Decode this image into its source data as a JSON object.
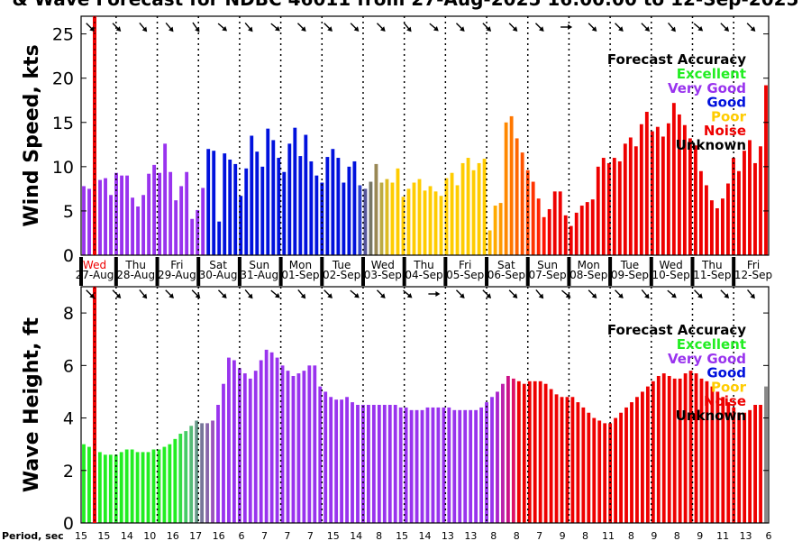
{
  "title": "& Wave Forecast for NDBC 46011 from 27-Aug-2025 16:00:00 to 12-Sep-2025",
  "legend": {
    "title": "Forecast Accuracy",
    "entries": [
      {
        "label": "Excellent",
        "color": "#22ee22"
      },
      {
        "label": "Very Good",
        "color": "#9933ee"
      },
      {
        "label": "Good",
        "color": "#0011dd"
      },
      {
        "label": "Poor",
        "color": "#ffcc00"
      },
      {
        "label": "Noise",
        "color": "#ee0000"
      },
      {
        "label": "Unknown",
        "color": "#000000"
      }
    ]
  },
  "period_label": "Period, sec",
  "periods": [
    "15",
    "15",
    "14",
    "10",
    "16",
    "17",
    "16",
    "6",
    "7",
    "7",
    "7",
    "15",
    "14",
    "8",
    "15",
    "14",
    "13",
    "13",
    "8",
    "8",
    "7",
    "9",
    "8",
    "11",
    "8",
    "9",
    "8",
    "9",
    "11",
    "13",
    "6"
  ],
  "days": [
    {
      "dow": "Wed",
      "date": "27-Aug"
    },
    {
      "dow": "Thu",
      "date": "28-Aug"
    },
    {
      "dow": "Fri",
      "date": "29-Aug"
    },
    {
      "dow": "Sat",
      "date": "30-Aug"
    },
    {
      "dow": "Sun",
      "date": "31-Aug"
    },
    {
      "dow": "Mon",
      "date": "01-Sep"
    },
    {
      "dow": "Tue",
      "date": "02-Sep"
    },
    {
      "dow": "Wed",
      "date": "03-Sep"
    },
    {
      "dow": "Thu",
      "date": "04-Sep"
    },
    {
      "dow": "Fri",
      "date": "05-Sep"
    },
    {
      "dow": "Sat",
      "date": "06-Sep"
    },
    {
      "dow": "Sun",
      "date": "07-Sep"
    },
    {
      "dow": "Mon",
      "date": "08-Sep"
    },
    {
      "dow": "Tue",
      "date": "09-Sep"
    },
    {
      "dow": "Wed",
      "date": "10-Sep"
    },
    {
      "dow": "Thu",
      "date": "11-Sep"
    },
    {
      "dow": "Fri",
      "date": "12-Sep"
    }
  ],
  "chart_data": [
    {
      "type": "bar",
      "ylabel": "Wind Speed, kts",
      "ylim": [
        0,
        27
      ],
      "yticks": [
        0,
        5,
        10,
        15,
        20,
        25
      ],
      "values": [
        7.8,
        7.5,
        9,
        8.5,
        8.7,
        6.8,
        9.3,
        9,
        9,
        6.5,
        5.5,
        6.8,
        9.2,
        10.2,
        9.3,
        12.6,
        9.4,
        6.2,
        7.8,
        9.4,
        4.1,
        5.1,
        7.6,
        12,
        11.8,
        3.8,
        11.5,
        10.8,
        10.3,
        6.7,
        9.8,
        13.5,
        11.7,
        10,
        14.3,
        13,
        11,
        9.4,
        12.6,
        14.4,
        11.2,
        13.6,
        10.6,
        9,
        8.2,
        11.1,
        12,
        11,
        8.2,
        10,
        10.6,
        7.9,
        7.5,
        8.3,
        10.3,
        8.2,
        8.6,
        8.2,
        9.8,
        6.6,
        7.5,
        8.2,
        8.6,
        7.3,
        7.8,
        7.2,
        6.7,
        8.7,
        9.3,
        7.9,
        10.4,
        11,
        9.6,
        10.4,
        10.9,
        2.8,
        5.6,
        5.9,
        15,
        15.7,
        13.2,
        11.6,
        9.6,
        8.3,
        6.4,
        4.3,
        5.2,
        7.2,
        7.2,
        4.5,
        3.3,
        4.8,
        5.6,
        6,
        6.3,
        10,
        11,
        10.4,
        11,
        10.6,
        12.6,
        13.3,
        12.3,
        14.8,
        16.2,
        14,
        14.5,
        13.4,
        14.9,
        17.2,
        15.9,
        14.7,
        13.2,
        12.4,
        9.5,
        7.9,
        6.2,
        5.3,
        6.4,
        8.1,
        11,
        9.5,
        11.8,
        13,
        10.4,
        12.3,
        19.2
      ],
      "colors": [
        "#9933ee",
        "#9933ee",
        "#9933ee",
        "#9933ee",
        "#9933ee",
        "#9933ee",
        "#9933ee",
        "#9933ee",
        "#9933ee",
        "#9933ee",
        "#9933ee",
        "#9933ee",
        "#9933ee",
        "#9933ee",
        "#9933ee",
        "#9933ee",
        "#9933ee",
        "#9933ee",
        "#9933ee",
        "#9933ee",
        "#9933ee",
        "#9933ee",
        "#9933ee",
        "#0011dd",
        "#0011dd",
        "#0011dd",
        "#0011dd",
        "#0011dd",
        "#0011dd",
        "#0011dd",
        "#0011dd",
        "#0011dd",
        "#0011dd",
        "#0011dd",
        "#0011dd",
        "#0011dd",
        "#0011dd",
        "#0011dd",
        "#0011dd",
        "#0011dd",
        "#0011dd",
        "#0011dd",
        "#0011dd",
        "#0011dd",
        "#0011dd",
        "#0011dd",
        "#0011dd",
        "#0011dd",
        "#0011dd",
        "#0011dd",
        "#0011dd",
        "#3344cc",
        "#555599",
        "#777766",
        "#998855",
        "#bbaa44",
        "#ddbb22",
        "#ffcc00",
        "#ffcc00",
        "#ffcc00",
        "#ffcc00",
        "#ffcc00",
        "#ffcc00",
        "#ffcc00",
        "#ffcc00",
        "#ffcc00",
        "#ffcc00",
        "#ffcc00",
        "#ffcc00",
        "#ffcc00",
        "#ffcc00",
        "#ffcc00",
        "#ffcc00",
        "#ffcc00",
        "#ffcc00",
        "#ffbb00",
        "#ffaa00",
        "#ff9900",
        "#ff8800",
        "#ff7700",
        "#ff6600",
        "#ff5500",
        "#ff4400",
        "#ff3300",
        "#ff2200",
        "#ff1100",
        "#ee0000",
        "#ee0000",
        "#ee0000",
        "#ee0000",
        "#ee0000",
        "#ee0000",
        "#ee0000",
        "#ee0000",
        "#ee0000",
        "#ee0000",
        "#ee0000",
        "#ee0000",
        "#ee0000",
        "#ee0000",
        "#ee0000",
        "#ee0000",
        "#ee0000",
        "#ee0000",
        "#ee0000",
        "#ee0000",
        "#ee0000",
        "#ee0000",
        "#ee0000",
        "#ee0000",
        "#ee0000",
        "#ee0000",
        "#ee0000",
        "#ee0000",
        "#ee0000",
        "#ee0000",
        "#ee0000",
        "#ee0000",
        "#ee0000",
        "#ee0000",
        "#ee0000",
        "#ee0000",
        "#ee0000",
        "#ee0000",
        "#ee0000",
        "#ee0000",
        "#ee0000"
      ],
      "direction_deg": [
        135,
        130,
        140,
        135,
        135,
        130,
        140,
        135,
        130,
        140,
        135,
        135,
        145,
        140,
        135,
        130,
        135,
        135,
        140,
        135,
        135,
        130,
        140,
        135,
        135,
        130,
        140,
        135,
        135,
        130,
        135,
        140,
        135,
        135,
        130,
        135,
        140,
        135,
        135,
        130,
        135,
        140,
        135,
        135,
        130,
        135,
        140,
        135,
        135,
        130,
        135,
        135,
        100,
        95,
        90,
        95,
        130,
        135,
        140,
        135,
        135,
        130,
        140,
        135,
        135,
        130,
        140,
        135,
        135,
        130,
        140,
        135,
        135,
        130,
        140,
        135,
        135
      ],
      "now_index": 3
    },
    {
      "type": "bar",
      "ylabel": "Wave Height, ft",
      "ylim": [
        0,
        9
      ],
      "yticks": [
        0,
        2,
        4,
        6,
        8
      ],
      "values": [
        3,
        2.9,
        2.8,
        2.7,
        2.6,
        2.6,
        2.6,
        2.7,
        2.8,
        2.8,
        2.7,
        2.7,
        2.7,
        2.8,
        2.8,
        2.9,
        3,
        3.2,
        3.4,
        3.5,
        3.7,
        3.9,
        3.8,
        3.8,
        3.9,
        4.5,
        5.3,
        6.3,
        6.2,
        5.9,
        5.7,
        5.5,
        5.8,
        6.2,
        6.6,
        6.5,
        6.3,
        6,
        5.8,
        5.6,
        5.7,
        5.8,
        6,
        6,
        5.2,
        5,
        4.8,
        4.7,
        4.7,
        4.8,
        4.6,
        4.5,
        4.5,
        4.5,
        4.5,
        4.5,
        4.5,
        4.5,
        4.5,
        4.4,
        4.4,
        4.3,
        4.3,
        4.3,
        4.4,
        4.4,
        4.4,
        4.4,
        4.4,
        4.3,
        4.3,
        4.3,
        4.3,
        4.3,
        4.4,
        4.6,
        4.8,
        5,
        5.3,
        5.6,
        5.5,
        5.4,
        5.3,
        5.4,
        5.4,
        5.4,
        5.3,
        5.1,
        4.9,
        4.8,
        4.8,
        4.8,
        4.6,
        4.4,
        4.2,
        4,
        3.9,
        3.8,
        3.8,
        4,
        4.2,
        4.4,
        4.6,
        4.8,
        5,
        5.2,
        5.4,
        5.6,
        5.7,
        5.6,
        5.5,
        5.5,
        5.7,
        5.8,
        5.7,
        5.5,
        5.4,
        5.2,
        5,
        4.8,
        4.6,
        4.4,
        4.2,
        4.2,
        4.3,
        4.5,
        4.5,
        5.2
      ],
      "colors": [
        "#22ee22",
        "#22ee22",
        "#22ee22",
        "#22ee22",
        "#22ee22",
        "#22ee22",
        "#22ee22",
        "#22ee22",
        "#22ee22",
        "#22ee22",
        "#22ee22",
        "#22ee22",
        "#22ee22",
        "#22ee22",
        "#22ee22",
        "#22ee22",
        "#22ee22",
        "#22ee22",
        "#33dd44",
        "#44cc66",
        "#55bb77",
        "#669988",
        "#777799",
        "#8866aa",
        "#9955bb",
        "#9933ee",
        "#9933ee",
        "#9933ee",
        "#9933ee",
        "#9933ee",
        "#9933ee",
        "#9933ee",
        "#9933ee",
        "#9933ee",
        "#9933ee",
        "#9933ee",
        "#9933ee",
        "#9933ee",
        "#9933ee",
        "#9933ee",
        "#9933ee",
        "#9933ee",
        "#9933ee",
        "#9933ee",
        "#9933ee",
        "#9933ee",
        "#9933ee",
        "#9933ee",
        "#9933ee",
        "#9933ee",
        "#9933ee",
        "#9933ee",
        "#9933ee",
        "#9933ee",
        "#9933ee",
        "#9933ee",
        "#9933ee",
        "#9933ee",
        "#9933ee",
        "#9933ee",
        "#9933ee",
        "#9933ee",
        "#9933ee",
        "#9933ee",
        "#9933ee",
        "#9933ee",
        "#9933ee",
        "#9933ee",
        "#9933ee",
        "#9933ee",
        "#9933ee",
        "#9933ee",
        "#9933ee",
        "#9933ee",
        "#9933ee",
        "#9933ee",
        "#9933ee",
        "#aa22cc",
        "#bb22aa",
        "#cc1188",
        "#dd1166",
        "#ee0000",
        "#ee0000",
        "#ee0000",
        "#ee0000",
        "#ee0000",
        "#ee0000",
        "#ee0000",
        "#ee0000",
        "#ee0000",
        "#ee0000",
        "#ee0000",
        "#ee0000",
        "#ee0000",
        "#ee0000",
        "#ee0000",
        "#ee0000",
        "#ee0000",
        "#ee0000",
        "#ee0000",
        "#ee0000",
        "#ee0000",
        "#ee0000",
        "#ee0000",
        "#ee0000",
        "#ee0000",
        "#ee0000",
        "#ee0000",
        "#ee0000",
        "#ee0000",
        "#ee0000",
        "#ee0000",
        "#ee0000",
        "#ee0000",
        "#ee0000",
        "#ee0000",
        "#ee0000",
        "#ee0000",
        "#ee0000",
        "#ee0000",
        "#ee0000",
        "#ee0000",
        "#ee0000",
        "#ee0000",
        "#ee0000",
        "#ee0000",
        "#ee0000"
      ],
      "direction_deg": [
        135,
        135,
        140,
        135,
        130,
        135,
        140,
        135,
        130,
        135,
        125,
        130,
        135,
        130,
        125,
        135,
        130,
        130,
        140,
        135,
        120,
        130,
        135,
        135,
        140,
        135,
        130,
        135,
        140,
        135,
        130,
        135,
        140,
        135,
        135,
        130,
        130,
        100,
        95,
        90,
        95,
        130,
        135,
        140,
        135,
        135,
        130,
        140,
        135,
        135,
        130,
        140,
        135,
        135,
        130,
        140,
        135,
        135,
        130,
        140,
        135,
        135,
        130,
        140,
        135,
        135,
        130,
        140,
        135,
        135,
        130,
        140,
        135,
        135,
        130,
        140,
        135
      ],
      "now_index": 3
    }
  ]
}
